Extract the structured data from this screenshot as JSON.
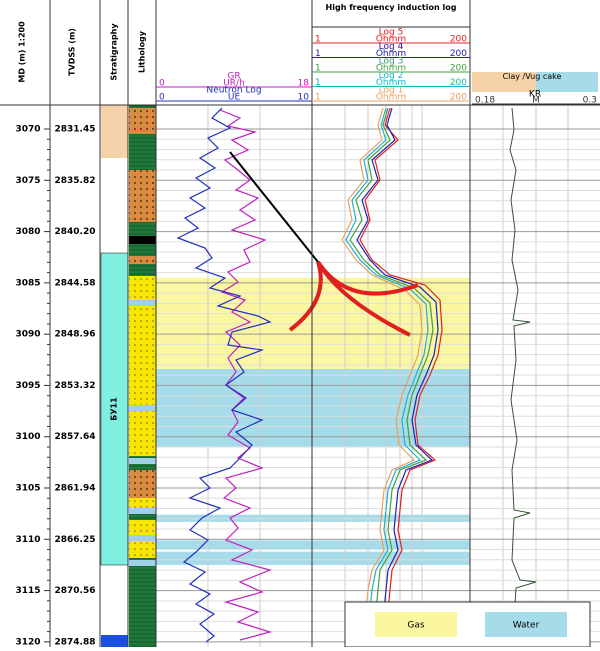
{
  "header": {
    "md_title": "MD (m) 1:200",
    "tvdss_title": "TVDSS (m)",
    "strat_title": "Stratigraphy",
    "litho_title": "Lithology",
    "induction_title": "High frequency induction log",
    "clay_title": "Clay /Vug cake"
  },
  "depth_axis": {
    "md_range": [
      3067.66,
      3120.5
    ],
    "md_ticks": [
      3070,
      3075,
      3080,
      3085,
      3090,
      3095,
      3100,
      3105,
      3110,
      3115,
      3120
    ],
    "tvdss_ticks": [
      "2831.45",
      "2835.82",
      "2840.20",
      "2844.58",
      "2848.96",
      "2853.32",
      "2857.64",
      "2861.94",
      "2866.25",
      "2870.56",
      "2874.88"
    ]
  },
  "gr_track": [
    {
      "name": "GR",
      "color": "#c020c0",
      "min": 0,
      "unit": "UR/h",
      "max": 18
    },
    {
      "name": "Neutron Log",
      "color": "#2030c0",
      "min": 0,
      "unit": "UE",
      "max": 10
    }
  ],
  "induction_logs": [
    {
      "name": "Log 5",
      "color": "#e02020",
      "min": 1,
      "unit": "Ohmm",
      "max": 200
    },
    {
      "name": "Log 4",
      "color": "#2020b0",
      "min": 1,
      "unit": "Ohmm",
      "max": 200
    },
    {
      "name": "Log 3",
      "color": "#40a040",
      "min": 1,
      "unit": "Ohmm",
      "max": 200
    },
    {
      "name": "Log 2",
      "color": "#20b0d0",
      "min": 1,
      "unit": "Ohmm",
      "max": 200
    },
    {
      "name": "Log 1",
      "color": "#e8a060",
      "min": 1,
      "unit": "Ohmm",
      "max": 200
    }
  ],
  "clay_scale": {
    "name": "KR",
    "min": 0.18,
    "unit": "M",
    "max": 0.3
  },
  "stratigraphy": {
    "unit": "БУ11"
  },
  "zones": [
    {
      "fluid": "Gas",
      "top": 3084.5,
      "bottom": 3093.4
    },
    {
      "fluid": "Water",
      "top": 3093.4,
      "bottom": 3101.0
    },
    {
      "fluid": "Water",
      "top": 3107.6,
      "bottom": 3108.3
    },
    {
      "fluid": "Water",
      "top": 3110.1,
      "bottom": 3111.0
    },
    {
      "fluid": "Water",
      "top": 3111.2,
      "bottom": 3112.5
    }
  ],
  "legend": [
    {
      "name": "Gas",
      "color": "#fbf7a0"
    },
    {
      "name": "Water",
      "color": "#a6dcea"
    }
  ]
}
